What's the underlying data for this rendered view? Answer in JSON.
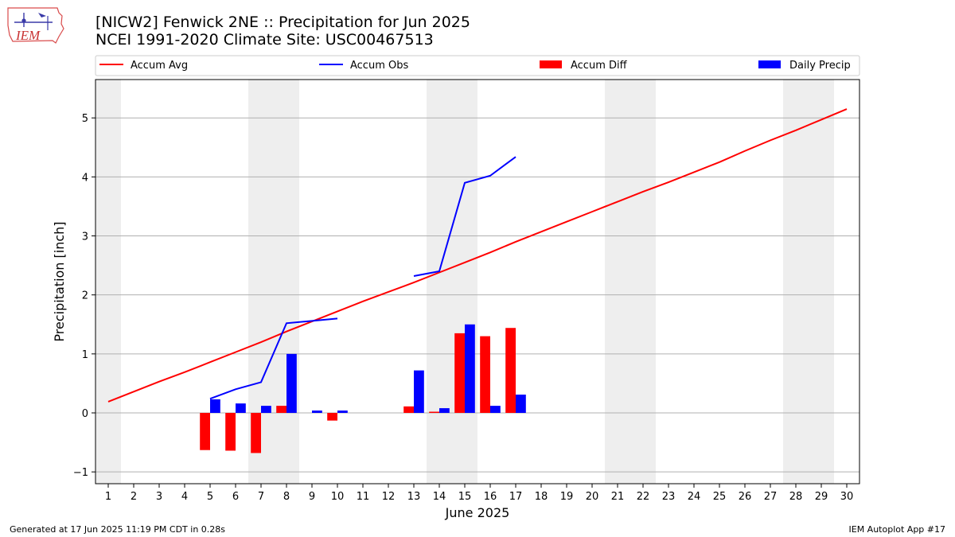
{
  "header": {
    "title_line1": "[NICW2] Fenwick 2NE :: Precipitation for Jun 2025",
    "title_line2": "NCEI 1991-2020 Climate Site: USC00467513",
    "logo_text": "IEM"
  },
  "footer": {
    "left": "Generated at 17 Jun 2025 11:19 PM CDT in 0.28s",
    "right": "IEM Autoplot App #17"
  },
  "colors": {
    "accum_avg": "#ff0000",
    "accum_obs": "#0000ff",
    "accum_diff": "#ff0000",
    "daily_precip": "#0000ff",
    "weekend_shade": "#eeeeee",
    "grid": "#b0b0b0"
  },
  "chart_data": {
    "type": "bar",
    "xlabel": "June 2025",
    "ylabel": "Precipitation [inch]",
    "xlim": [
      0.5,
      30.5
    ],
    "ylim": [
      -1.2,
      5.65
    ],
    "x_ticks": [
      1,
      2,
      3,
      4,
      5,
      6,
      7,
      8,
      9,
      10,
      11,
      12,
      13,
      14,
      15,
      16,
      17,
      18,
      19,
      20,
      21,
      22,
      23,
      24,
      25,
      26,
      27,
      28,
      29,
      30
    ],
    "y_ticks": [
      -1,
      0,
      1,
      2,
      3,
      4,
      5
    ],
    "grid": "horizontal",
    "legend_position": "top (above plot, single row)",
    "weekend_shading_days": [
      1,
      7,
      8,
      14,
      15,
      21,
      22,
      28,
      29
    ],
    "legend": [
      "Accum Avg",
      "Accum Obs",
      "Accum Diff",
      "Daily Precip"
    ],
    "series": [
      {
        "name": "Accum Avg",
        "kind": "line",
        "x": [
          1,
          2,
          3,
          4,
          5,
          6,
          7,
          8,
          9,
          10,
          11,
          12,
          13,
          14,
          15,
          16,
          17,
          18,
          19,
          20,
          21,
          22,
          23,
          24,
          25,
          26,
          27,
          28,
          29,
          30
        ],
        "values": [
          0.19,
          0.36,
          0.53,
          0.69,
          0.86,
          1.03,
          1.2,
          1.38,
          1.55,
          1.72,
          1.89,
          2.05,
          2.21,
          2.38,
          2.55,
          2.72,
          2.9,
          3.07,
          3.24,
          3.41,
          3.58,
          3.75,
          3.91,
          4.08,
          4.25,
          4.44,
          4.62,
          4.79,
          4.97,
          5.15
        ]
      },
      {
        "name": "Accum Obs",
        "kind": "line",
        "segments": [
          {
            "x": [
              5,
              6,
              7,
              8,
              9,
              10
            ],
            "values": [
              0.24,
              0.4,
              0.52,
              1.52,
              1.56,
              1.6
            ]
          },
          {
            "x": [
              13,
              14,
              15,
              16,
              17
            ],
            "values": [
              2.32,
              2.4,
              3.9,
              4.02,
              4.34
            ]
          }
        ]
      },
      {
        "name": "Accum Diff",
        "kind": "bar",
        "x": [
          5,
          6,
          7,
          8,
          10,
          13,
          14,
          15,
          16,
          17
        ],
        "values": [
          -0.63,
          -0.64,
          -0.68,
          0.12,
          -0.13,
          0.11,
          0.02,
          1.35,
          1.3,
          1.44
        ]
      },
      {
        "name": "Daily Precip",
        "kind": "bar",
        "x": [
          5,
          6,
          7,
          8,
          9,
          10,
          13,
          14,
          15,
          16,
          17
        ],
        "values": [
          0.23,
          0.16,
          0.12,
          1.0,
          0.04,
          0.04,
          0.72,
          0.08,
          1.5,
          0.12,
          0.31
        ]
      }
    ]
  }
}
